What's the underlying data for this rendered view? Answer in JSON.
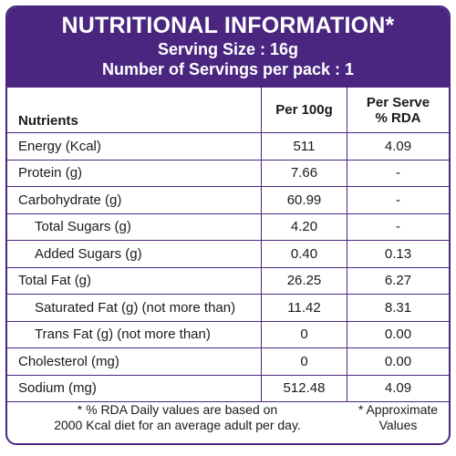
{
  "header": {
    "title": "NUTRITIONAL INFORMATION*",
    "serving_size": "Serving Size : 16g",
    "servings_per_pack": "Number of Servings per pack : 1"
  },
  "columns": {
    "nutrients": "Nutrients",
    "per_100g": "Per 100g",
    "per_serve_line1": "Per Serve",
    "per_serve_line2": "% RDA"
  },
  "rows": [
    {
      "name": "Energy (Kcal)",
      "per100g": "511",
      "rda": "4.09"
    },
    {
      "name": "Protein (g)",
      "per100g": "7.66",
      "rda": "-"
    },
    {
      "name": "Carbohydrate (g)",
      "per100g": "60.99",
      "rda": "-"
    },
    {
      "name": "Total Sugars (g)",
      "per100g": "4.20",
      "rda": "-"
    },
    {
      "name": "Added Sugars (g)",
      "per100g": "0.40",
      "rda": "0.13"
    },
    {
      "name": "Total Fat (g)",
      "per100g": "26.25",
      "rda": "6.27"
    },
    {
      "name": "Saturated Fat (g) (not more than)",
      "per100g": "11.42",
      "rda": "8.31"
    },
    {
      "name": "Trans Fat (g) (not more than)",
      "per100g": "0",
      "rda": "0.00"
    },
    {
      "name": "Cholesterol (mg)",
      "per100g": "0",
      "rda": "0.00"
    },
    {
      "name": "Sodium (mg)",
      "per100g": "512.48",
      "rda": "4.09"
    }
  ],
  "footer": {
    "rda_note_line1": "* % RDA Daily values are based on",
    "rda_note_line2": "2000 Kcal diet for an average adult per day.",
    "approx_line1": "* Approximate",
    "approx_line2": "Values"
  }
}
